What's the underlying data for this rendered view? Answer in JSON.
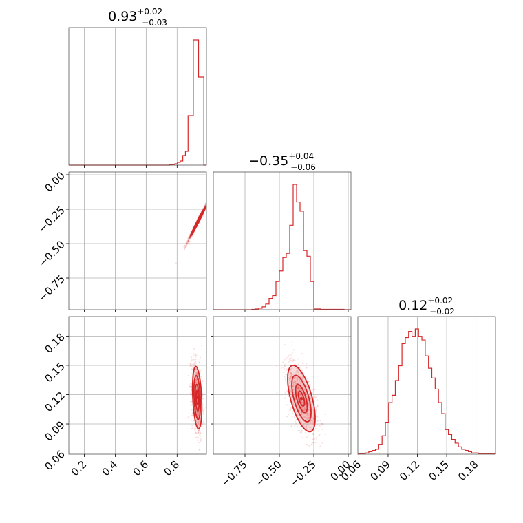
{
  "colors": {
    "accent": "#d62728",
    "grid": "#b0b0b0",
    "frame": "#555555"
  },
  "chart_data": {
    "type": "corner",
    "parameters": [
      {
        "title": {
          "median": "0.93",
          "plus": "+0.02",
          "minus": "−0.03"
        },
        "range": [
          0.1,
          0.99
        ],
        "ticks": [
          "0.2",
          "0.4",
          "0.6",
          "0.8"
        ],
        "tick_values": [
          0.2,
          0.4,
          0.6,
          0.8
        ]
      },
      {
        "title": {
          "median": "−0.35",
          "plus": "+0.04",
          "minus": "−0.06"
        },
        "range": [
          -0.98,
          0.02
        ],
        "ticks": [
          "−0.75",
          "−0.50",
          "−0.25",
          "0.00"
        ],
        "tick_values": [
          -0.75,
          -0.5,
          -0.25,
          0.0
        ]
      },
      {
        "title": {
          "median": "0.12",
          "plus": "+0.02",
          "minus": "−0.02"
        },
        "range": [
          0.059,
          0.2
        ],
        "ticks": [
          "0.06",
          "0.09",
          "0.12",
          "0.15",
          "0.18"
        ],
        "tick_values": [
          0.06,
          0.09,
          0.12,
          0.15,
          0.18
        ]
      }
    ],
    "histograms": [
      {
        "edges": [
          0.752,
          0.769,
          0.786,
          0.803,
          0.82,
          0.837,
          0.854,
          0.871,
          0.888,
          0.905,
          0.922,
          0.939,
          0.956,
          0.973,
          0.99
        ],
        "counts": [
          0.5,
          1,
          2,
          4,
          6,
          14,
          20,
          72,
          72,
          182,
          182,
          128,
          128,
          0
        ]
      },
      {
        "edges": [
          -0.7,
          -0.675,
          -0.65,
          -0.625,
          -0.6,
          -0.575,
          -0.55,
          -0.525,
          -0.5,
          -0.475,
          -0.45,
          -0.425,
          -0.4,
          -0.375,
          -0.35,
          -0.325,
          -0.3,
          -0.275,
          -0.25,
          -0.2,
          -0.05,
          -0.03
        ],
        "counts": [
          0.5,
          1,
          2,
          4,
          8,
          16,
          20,
          40,
          55,
          74,
          80,
          120,
          178,
          153,
          140,
          84,
          76,
          40,
          1,
          0.5,
          0.5
        ]
      },
      {
        "edges": [
          0.06,
          0.0634,
          0.0668,
          0.0702,
          0.0736,
          0.077,
          0.0804,
          0.0838,
          0.0872,
          0.0906,
          0.094,
          0.0974,
          0.1008,
          0.1042,
          0.1076,
          0.111,
          0.1144,
          0.1178,
          0.1212,
          0.1246,
          0.128,
          0.1314,
          0.1348,
          0.1382,
          0.1416,
          0.145,
          0.1484,
          0.1518,
          0.1552,
          0.1586,
          0.162,
          0.1654,
          0.1688,
          0.1722,
          0.1756,
          0.179,
          0.1824,
          0.1858,
          0.19,
          0.2
        ],
        "counts": [
          0.5,
          0.5,
          1,
          2,
          3,
          4,
          8,
          15,
          26,
          42,
          48,
          60,
          72,
          90,
          95,
          100,
          96,
          102,
          96,
          93,
          80,
          70,
          62,
          53,
          42,
          33,
          20,
          16,
          12,
          9,
          6,
          4,
          3,
          2,
          1,
          1,
          0.5,
          0.5,
          0.5
        ]
      }
    ],
    "pairs": [
      {
        "x_param": 0,
        "y_param": 1,
        "center": [
          0.935,
          -0.34
        ],
        "spread": [
          0.025,
          0.055
        ],
        "correlation": 0.99
      },
      {
        "x_param": 0,
        "y_param": 2,
        "center": [
          0.93,
          0.117
        ],
        "spread": [
          0.015,
          0.016
        ],
        "correlation": -0.3
      },
      {
        "x_param": 1,
        "y_param": 2,
        "center": [
          -0.34,
          0.116
        ],
        "spread": [
          0.05,
          0.017
        ],
        "correlation": -0.6
      }
    ],
    "grid": true,
    "histogram_style": "step"
  }
}
